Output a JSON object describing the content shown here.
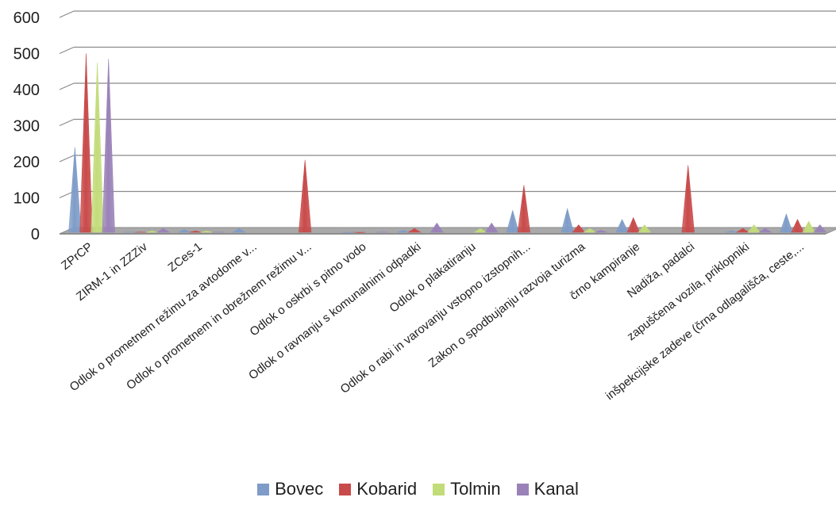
{
  "chart_data": {
    "type": "bar",
    "title": "",
    "xlabel": "",
    "ylabel": "",
    "ylim": [
      0,
      600
    ],
    "yticks": [
      "0",
      "100",
      "200",
      "300",
      "400",
      "500",
      "600"
    ],
    "grid": true,
    "legend_position": "bottom",
    "categories": [
      "ZPrCP",
      "ZIRM-1 in ZZZiv",
      "ZCes-1",
      "Odlok o prometnem režimu za avtodome v...",
      "Odlok o prometnem in obrežnem režimu v...",
      "Odlok o oskrbi s pitno vodo",
      "Odlok o ravnanju s komunalnimi odpadki",
      "Odlok o plakatiranju",
      "Odlok o rabi in varovanju vstopno izstopnih...",
      "Zakon o spodbujanju razvoja turizma",
      "črno kampiranje",
      "Nadiža, padalci",
      "zapuščena vozila, priklopniki",
      "inšpekcijske zadeve (črna odlagališča, ceste,..."
    ],
    "series": [
      {
        "name": "Bovec",
        "color": "#7f9cc8",
        "values": [
          240,
          5,
          12,
          15,
          0,
          3,
          10,
          0,
          65,
          70,
          40,
          0,
          8,
          55
        ]
      },
      {
        "name": "Kobarid",
        "color": "#c94a4a",
        "values": [
          500,
          5,
          8,
          0,
          205,
          3,
          15,
          0,
          135,
          25,
          45,
          190,
          15,
          40
        ]
      },
      {
        "name": "Tolmin",
        "color": "#c3dc7a",
        "values": [
          475,
          8,
          8,
          0,
          0,
          0,
          0,
          15,
          0,
          15,
          25,
          0,
          25,
          35
        ]
      },
      {
        "name": "Kanal",
        "color": "#9a82b8",
        "values": [
          485,
          15,
          5,
          0,
          0,
          5,
          30,
          30,
          0,
          10,
          0,
          0,
          15,
          25
        ]
      }
    ]
  }
}
